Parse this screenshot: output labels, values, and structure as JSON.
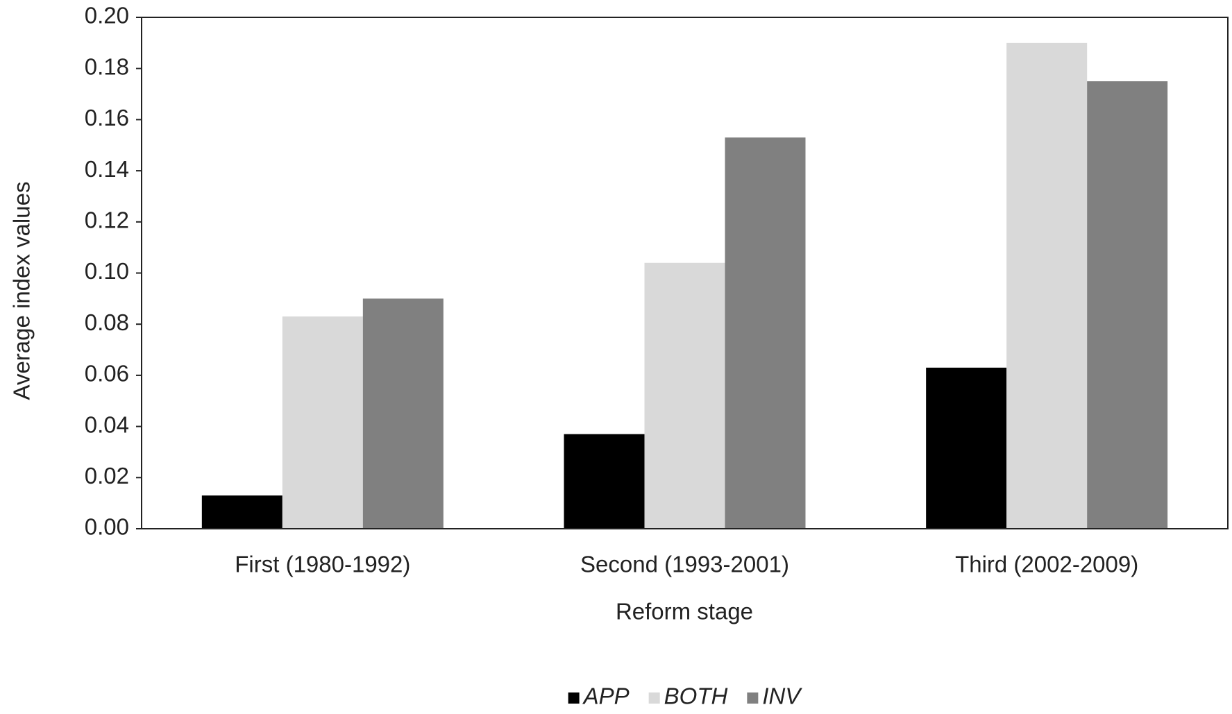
{
  "chart_data": {
    "type": "bar",
    "x_label": "Reform stage",
    "y_label": "Average index values",
    "categories": [
      "First (1980-1992)",
      "Second (1993-2001)",
      "Third (2002-2009)"
    ],
    "series": [
      {
        "name": "APP",
        "color": "#000000",
        "values": [
          0.013,
          0.037,
          0.063
        ]
      },
      {
        "name": "BOTH",
        "color": "#d9d9d9",
        "values": [
          0.083,
          0.104,
          0.19
        ]
      },
      {
        "name": "INV",
        "color": "#808080",
        "values": [
          0.09,
          0.153,
          0.175
        ]
      }
    ],
    "ylim": [
      0,
      0.2
    ],
    "yticks": [
      {
        "value": 0,
        "label": "0.00"
      },
      {
        "value": 0.02,
        "label": "0.02"
      },
      {
        "value": 0.04,
        "label": "0.04"
      },
      {
        "value": 0.06,
        "label": "0.06"
      },
      {
        "value": 0.08,
        "label": "0.08"
      },
      {
        "value": 0.1,
        "label": "0.10"
      },
      {
        "value": 0.12,
        "label": "0.12"
      },
      {
        "value": 0.14,
        "label": "0.14"
      },
      {
        "value": 0.16,
        "label": "0.16"
      },
      {
        "value": 0.18,
        "label": "0.18"
      },
      {
        "value": 0.2,
        "label": "0.20"
      }
    ],
    "legend": "bottom"
  }
}
